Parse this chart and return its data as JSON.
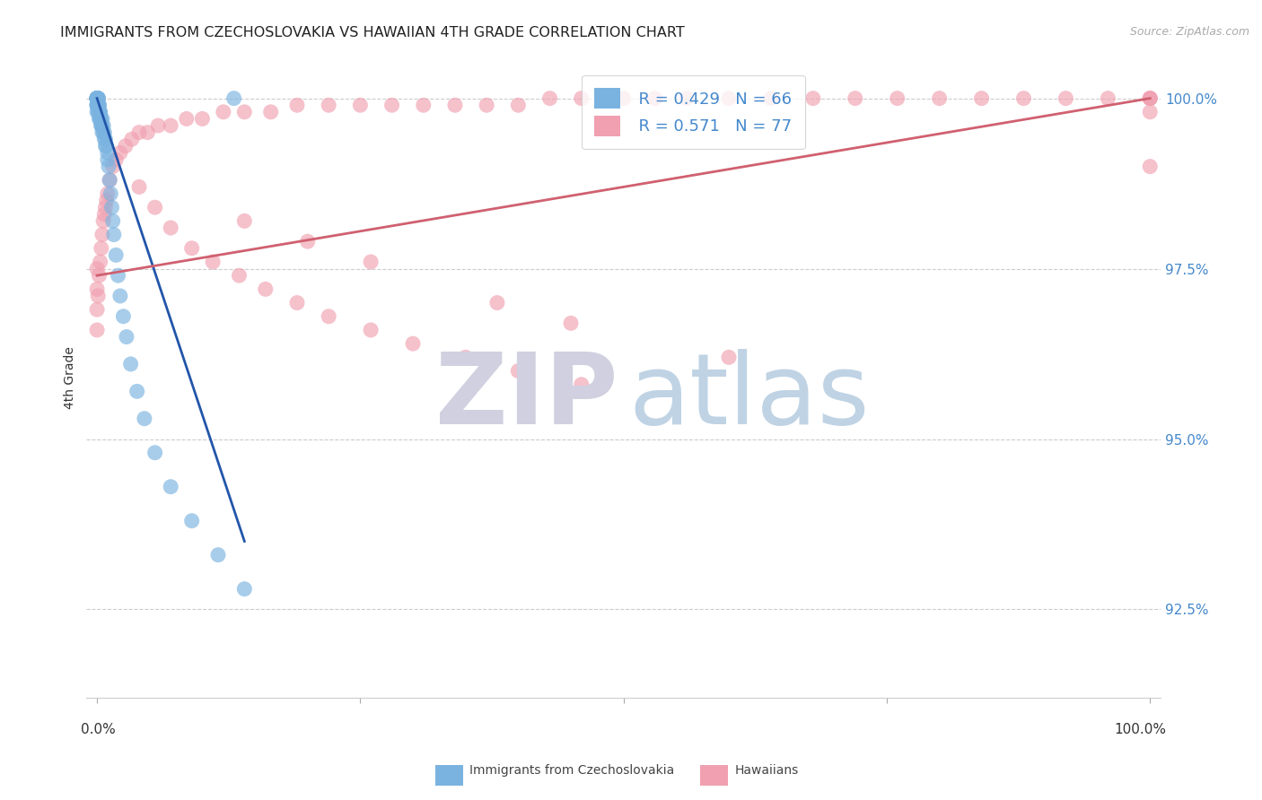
{
  "title": "IMMIGRANTS FROM CZECHOSLOVAKIA VS HAWAIIAN 4TH GRADE CORRELATION CHART",
  "source": "Source: ZipAtlas.com",
  "ylabel": "4th Grade",
  "ytick_labels": [
    "100.0%",
    "97.5%",
    "95.0%",
    "92.5%"
  ],
  "ytick_values": [
    1.0,
    0.975,
    0.95,
    0.925
  ],
  "xlim": [
    -0.01,
    1.01
  ],
  "ylim": [
    0.912,
    1.006
  ],
  "legend_r_blue": "R = 0.429",
  "legend_n_blue": "N = 66",
  "legend_r_pink": "R = 0.571",
  "legend_n_pink": "N = 77",
  "blue_color": "#7ab3e0",
  "pink_color": "#f0a0b0",
  "blue_line_color": "#2255aa",
  "pink_line_color": "#d06070",
  "blue_scatter_x": [
    0.0,
    0.0,
    0.0,
    0.0,
    0.0,
    0.0,
    0.0,
    0.0,
    0.0,
    0.0,
    0.0,
    0.0,
    0.0,
    0.0,
    0.001,
    0.001,
    0.001,
    0.001,
    0.001,
    0.001,
    0.001,
    0.001,
    0.002,
    0.002,
    0.002,
    0.002,
    0.002,
    0.003,
    0.003,
    0.003,
    0.003,
    0.004,
    0.004,
    0.004,
    0.005,
    0.005,
    0.005,
    0.006,
    0.006,
    0.007,
    0.007,
    0.008,
    0.008,
    0.009,
    0.01,
    0.01,
    0.011,
    0.012,
    0.013,
    0.014,
    0.015,
    0.016,
    0.018,
    0.02,
    0.022,
    0.025,
    0.028,
    0.032,
    0.038,
    0.045,
    0.055,
    0.07,
    0.09,
    0.115,
    0.14,
    0.13
  ],
  "blue_scatter_y": [
    1.0,
    1.0,
    1.0,
    1.0,
    1.0,
    1.0,
    1.0,
    1.0,
    1.0,
    1.0,
    0.999,
    0.999,
    0.999,
    0.998,
    1.0,
    1.0,
    1.0,
    1.0,
    0.999,
    0.999,
    0.999,
    0.998,
    0.999,
    0.999,
    0.998,
    0.998,
    0.997,
    0.998,
    0.998,
    0.997,
    0.997,
    0.997,
    0.996,
    0.996,
    0.997,
    0.996,
    0.995,
    0.996,
    0.995,
    0.995,
    0.994,
    0.994,
    0.993,
    0.993,
    0.992,
    0.991,
    0.99,
    0.988,
    0.986,
    0.984,
    0.982,
    0.98,
    0.977,
    0.974,
    0.971,
    0.968,
    0.965,
    0.961,
    0.957,
    0.953,
    0.948,
    0.943,
    0.938,
    0.933,
    0.928,
    1.0
  ],
  "pink_scatter_x": [
    0.0,
    0.0,
    0.0,
    0.0,
    0.001,
    0.002,
    0.003,
    0.004,
    0.005,
    0.006,
    0.007,
    0.008,
    0.009,
    0.01,
    0.012,
    0.015,
    0.018,
    0.022,
    0.027,
    0.033,
    0.04,
    0.048,
    0.058,
    0.07,
    0.085,
    0.1,
    0.12,
    0.14,
    0.165,
    0.19,
    0.22,
    0.25,
    0.28,
    0.31,
    0.34,
    0.37,
    0.4,
    0.43,
    0.46,
    0.5,
    0.53,
    0.56,
    0.6,
    0.64,
    0.68,
    0.72,
    0.76,
    0.8,
    0.84,
    0.88,
    0.92,
    0.96,
    1.0,
    1.0,
    1.0,
    1.0,
    1.0,
    0.04,
    0.055,
    0.07,
    0.09,
    0.11,
    0.135,
    0.16,
    0.19,
    0.22,
    0.26,
    0.3,
    0.35,
    0.4,
    0.46,
    0.14,
    0.2,
    0.26,
    0.38,
    0.45,
    0.6
  ],
  "pink_scatter_y": [
    0.975,
    0.972,
    0.969,
    0.966,
    0.971,
    0.974,
    0.976,
    0.978,
    0.98,
    0.982,
    0.983,
    0.984,
    0.985,
    0.986,
    0.988,
    0.99,
    0.991,
    0.992,
    0.993,
    0.994,
    0.995,
    0.995,
    0.996,
    0.996,
    0.997,
    0.997,
    0.998,
    0.998,
    0.998,
    0.999,
    0.999,
    0.999,
    0.999,
    0.999,
    0.999,
    0.999,
    0.999,
    1.0,
    1.0,
    1.0,
    1.0,
    1.0,
    1.0,
    1.0,
    1.0,
    1.0,
    1.0,
    1.0,
    1.0,
    1.0,
    1.0,
    1.0,
    1.0,
    1.0,
    1.0,
    0.998,
    0.99,
    0.987,
    0.984,
    0.981,
    0.978,
    0.976,
    0.974,
    0.972,
    0.97,
    0.968,
    0.966,
    0.964,
    0.962,
    0.96,
    0.958,
    0.982,
    0.979,
    0.976,
    0.97,
    0.967,
    0.962
  ],
  "blue_trendline_x": [
    0.0,
    0.14
  ],
  "blue_trendline_y": [
    1.0,
    0.935
  ],
  "pink_trendline_x": [
    0.0,
    1.0
  ],
  "pink_trendline_y": [
    0.974,
    1.0
  ]
}
